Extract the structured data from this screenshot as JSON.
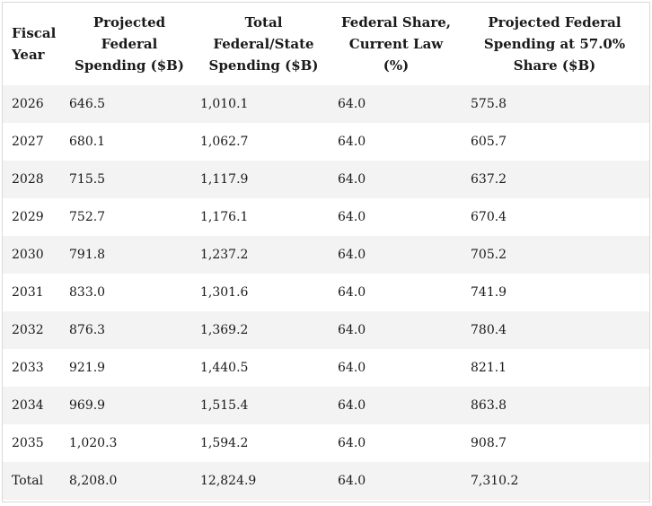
{
  "table": {
    "headers": [
      "Fiscal Year",
      "Projected Federal Spending ($B)",
      "Total Federal/State Spending ($B)",
      "Federal Share, Current Law (%)",
      "Projected Federal Spending at 57.0% Share ($B)"
    ],
    "rows": [
      [
        "2026",
        "646.5",
        "1,010.1",
        "64.0",
        "575.8"
      ],
      [
        "2027",
        "680.1",
        "1,062.7",
        "64.0",
        "605.7"
      ],
      [
        "2028",
        "715.5",
        "1,117.9",
        "64.0",
        "637.2"
      ],
      [
        "2029",
        "752.7",
        "1,176.1",
        "64.0",
        "670.4"
      ],
      [
        "2030",
        "791.8",
        "1,237.2",
        "64.0",
        "705.2"
      ],
      [
        "2031",
        "833.0",
        "1,301.6",
        "64.0",
        "741.9"
      ],
      [
        "2032",
        "876.3",
        "1,369.2",
        "64.0",
        "780.4"
      ],
      [
        "2033",
        "921.9",
        "1,440.5",
        "64.0",
        "821.1"
      ],
      [
        "2034",
        "969.9",
        "1,515.4",
        "64.0",
        "863.8"
      ],
      [
        "2035",
        "1,020.3",
        "1,594.2",
        "64.0",
        "908.7"
      ],
      [
        "Total",
        "8,208.0",
        "12,824.9",
        "64.0",
        "7,310.2"
      ]
    ]
  }
}
